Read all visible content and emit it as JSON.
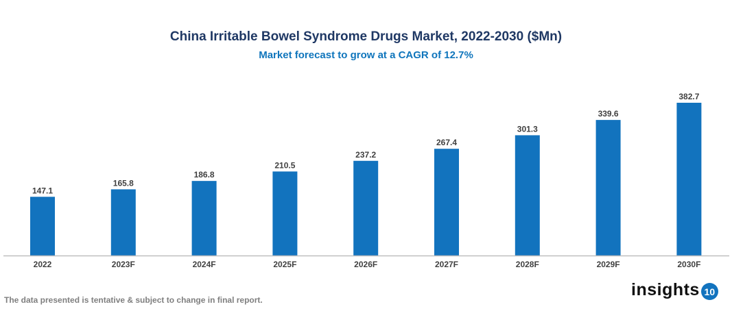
{
  "chart_data": {
    "type": "bar",
    "title": "China Irritable Bowel Syndrome Drugs Market, 2022-2030 ($Mn)",
    "subtitle": "Market forecast to grow at a CAGR of 12.7%",
    "categories": [
      "2022",
      "2023F",
      "2024F",
      "2025F",
      "2026F",
      "2027F",
      "2028F",
      "2029F",
      "2030F"
    ],
    "values": [
      147.1,
      165.8,
      186.8,
      210.5,
      237.2,
      267.4,
      301.3,
      339.6,
      382.7
    ],
    "data_labels": [
      "147.1",
      "165.8",
      "186.8",
      "210.5",
      "237.2",
      "267.4",
      "301.3",
      "339.6",
      "382.7"
    ],
    "xlabel": "",
    "ylabel": "",
    "ylim": [
      0,
      382.7
    ],
    "grid": false,
    "bar_color": "#1273be"
  },
  "footer": {
    "note": "The data presented is tentative & subject to change in final report.",
    "logo_text": "insights",
    "logo_badge": "10"
  }
}
